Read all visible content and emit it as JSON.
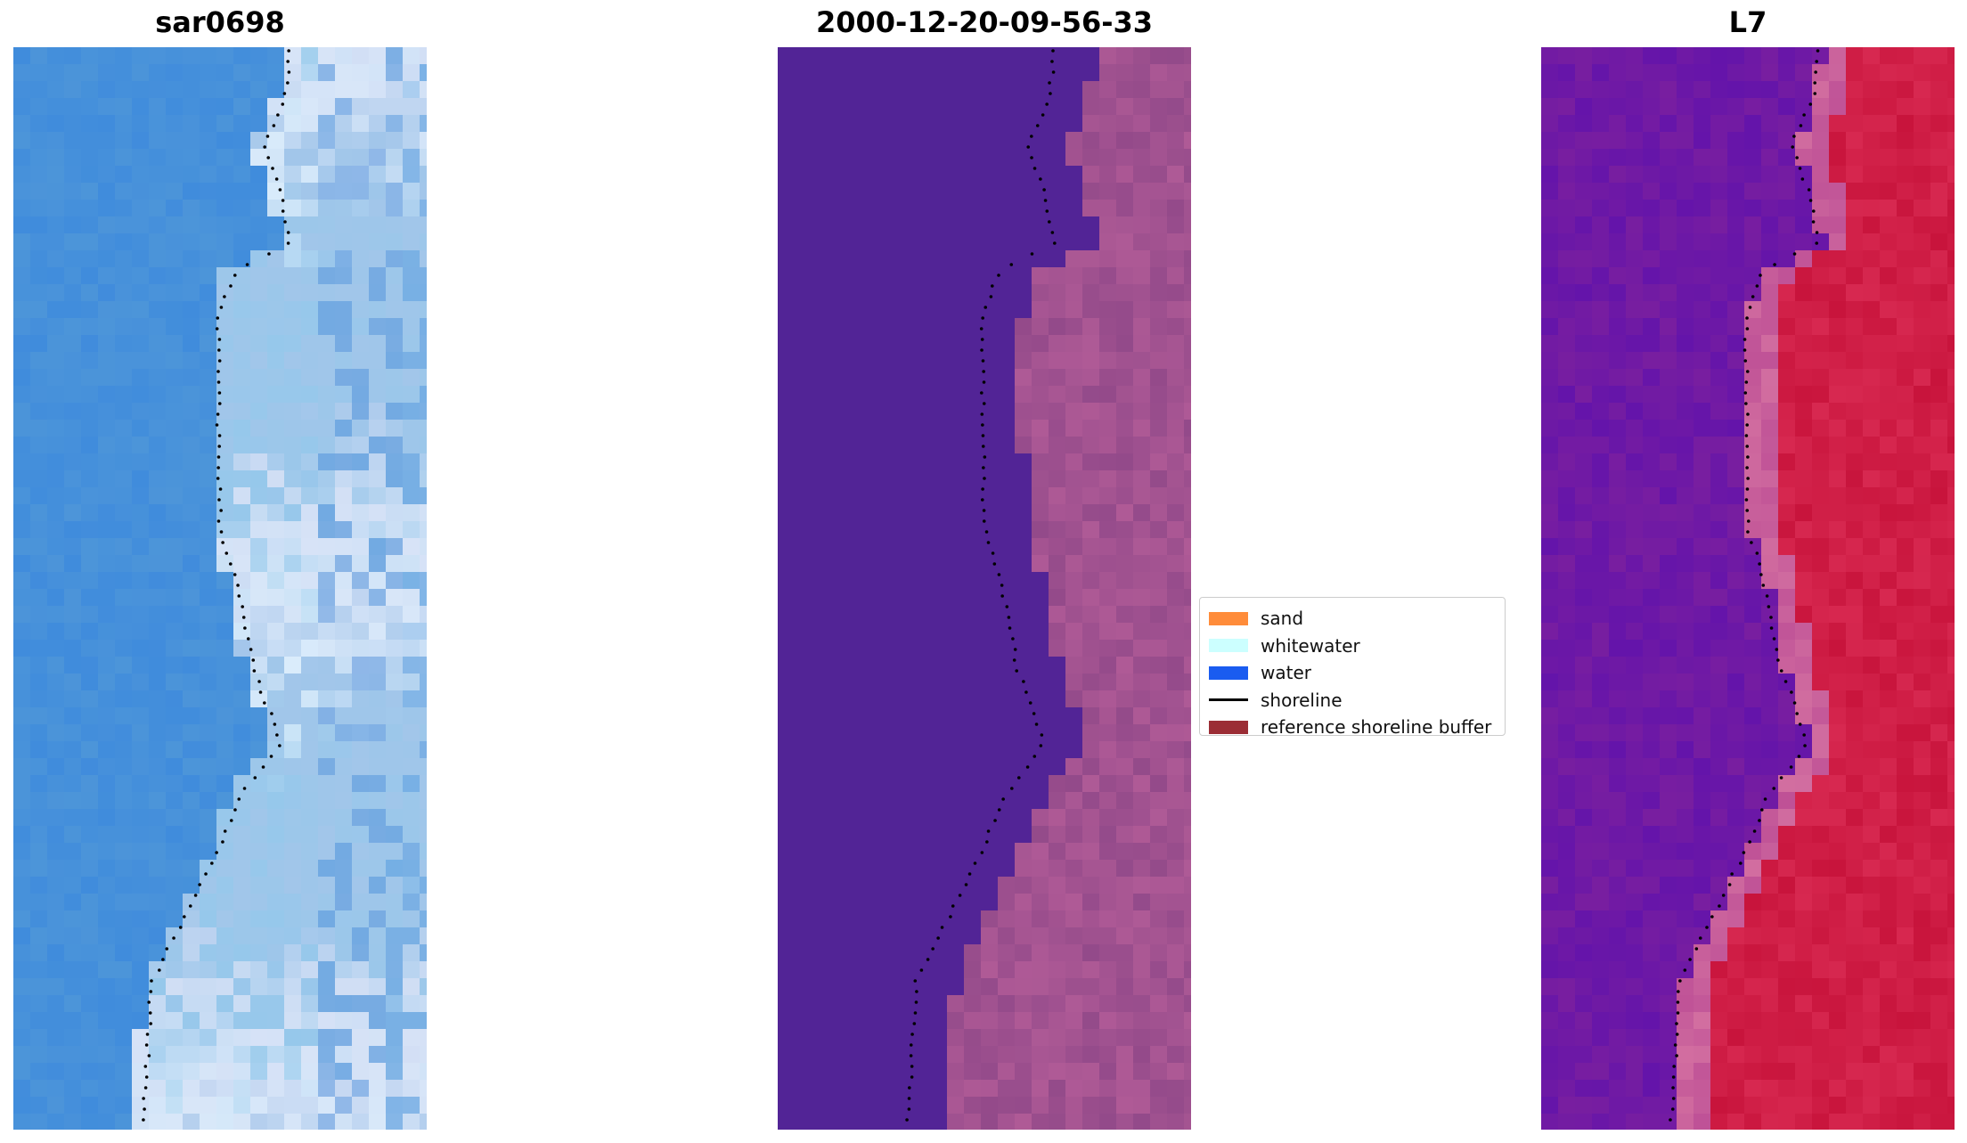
{
  "panels": [
    {
      "title": "sar0698",
      "image": "sar-rgb-image"
    },
    {
      "title": "2000-12-20-09-56-33",
      "image": "classified-image"
    },
    {
      "title": "L7",
      "image": "mndwi-image"
    }
  ],
  "legend": [
    {
      "label": "sand",
      "color": "#ff8c3a",
      "kind": "patch"
    },
    {
      "label": "whitewater",
      "color": "#ccffff",
      "kind": "patch"
    },
    {
      "label": "water",
      "color": "#1a5cf0",
      "kind": "patch"
    },
    {
      "label": "shoreline",
      "color": "#000000",
      "kind": "line"
    },
    {
      "label": "reference shoreline buffer",
      "color": "#9b2d35",
      "kind": "patch"
    }
  ]
}
